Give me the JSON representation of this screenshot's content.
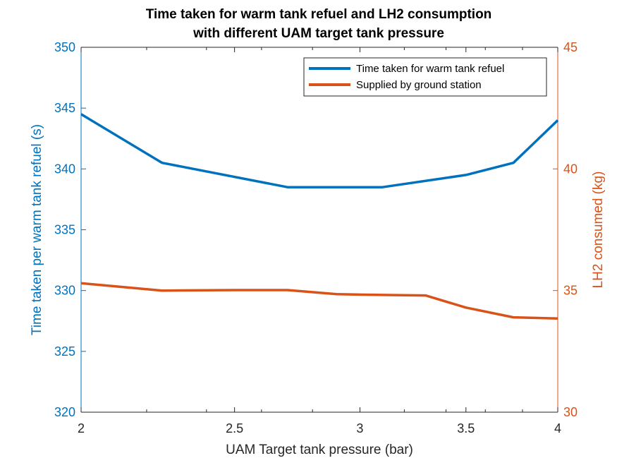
{
  "colors": {
    "left_axis": "#0072BD",
    "right_axis": "#D95319",
    "x_axis": "#262626",
    "series_1": "#0072BD",
    "series_2": "#D95319"
  },
  "chart_data": {
    "type": "line",
    "title": [
      "Time taken for warm tank refuel and LH2 consumption",
      "with different UAM target tank pressure"
    ],
    "xlabel": "UAM Target tank pressure (bar)",
    "ylabel_left": "Time taken per warm tank refuel (s)",
    "ylabel_right": "LH2 consumed (kg)",
    "x_scale": "log",
    "xlim": [
      2,
      4
    ],
    "ylim_left": [
      320,
      350
    ],
    "ylim_right": [
      30,
      45
    ],
    "x_ticks": [
      2,
      2.5,
      3,
      3.5,
      4
    ],
    "x_tick_labels": [
      "2",
      "2.5",
      "3",
      "3.5",
      "4"
    ],
    "x_minor_ticks": [
      2.2,
      2.4,
      2.6,
      2.8,
      3.2,
      3.4,
      3.6,
      3.8
    ],
    "y_left_ticks": [
      320,
      325,
      330,
      335,
      340,
      345,
      350
    ],
    "y_left_tick_labels": [
      "320",
      "325",
      "330",
      "335",
      "340",
      "345",
      "350"
    ],
    "y_right_ticks": [
      30,
      35,
      40,
      45
    ],
    "y_right_tick_labels": [
      "30",
      "35",
      "40",
      "45"
    ],
    "grid": false,
    "legend_position": "top-right",
    "series": [
      {
        "name": "Time taken for warm tank refuel",
        "axis": "left",
        "x": [
          2,
          2.25,
          2.7,
          3.1,
          3.5,
          3.75,
          4
        ],
        "values": [
          344.5,
          340.5,
          338.5,
          338.5,
          339.5,
          340.5,
          344
        ]
      },
      {
        "name": "Supplied by ground station",
        "axis": "right",
        "x": [
          2,
          2.25,
          2.5,
          2.7,
          2.9,
          3.1,
          3.3,
          3.5,
          3.75,
          4
        ],
        "values": [
          35.3,
          35.0,
          35.02,
          35.02,
          34.85,
          34.82,
          34.8,
          34.3,
          33.9,
          33.85
        ]
      }
    ]
  }
}
